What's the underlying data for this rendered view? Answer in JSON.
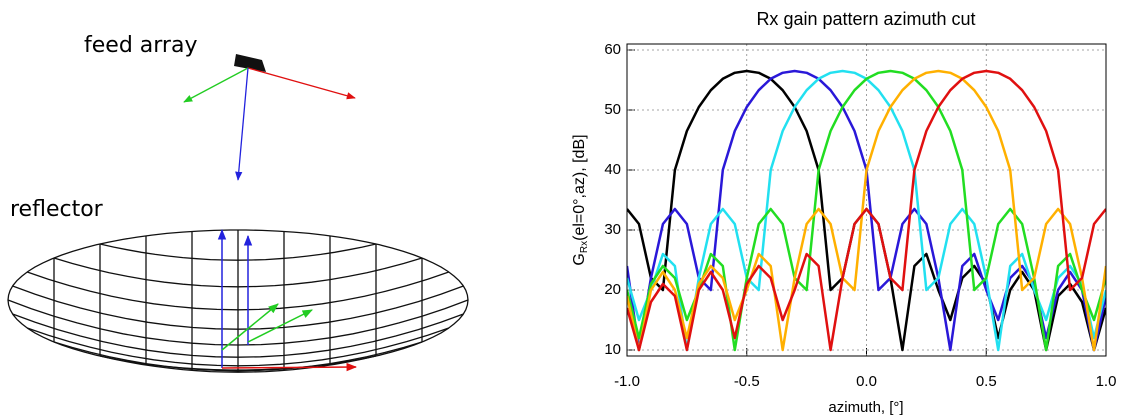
{
  "diagram": {
    "labels": [
      "feed array",
      "reflector"
    ]
  },
  "chart_data": {
    "type": "line",
    "title": "Rx gain pattern azimuth cut",
    "xlabel": "azimuth, [°]",
    "ylabel": {
      "main": "G",
      "sub": "Rx",
      "rest": "(el=0°,az), [dB]"
    },
    "x": [
      -1.0,
      -0.95,
      -0.9,
      -0.85,
      -0.8,
      -0.75,
      -0.7,
      -0.65,
      -0.6,
      -0.55,
      -0.5,
      -0.45,
      -0.4,
      -0.35,
      -0.3,
      -0.25,
      -0.2,
      -0.15,
      -0.1,
      -0.05,
      0.0,
      0.05,
      0.1,
      0.15,
      0.2,
      0.25,
      0.3,
      0.35,
      0.4,
      0.45,
      0.5,
      0.55,
      0.6,
      0.65,
      0.7,
      0.75,
      0.8,
      0.85,
      0.9,
      0.95,
      1.0
    ],
    "series": [
      {
        "color": "#000000",
        "values": [
          33.5,
          31,
          22,
          20,
          40,
          46.5,
          50.5,
          53.3,
          55.2,
          56.2,
          56.5,
          56.2,
          55.2,
          53.3,
          50.5,
          46.5,
          40,
          20,
          22,
          31,
          33.5,
          31,
          22,
          10,
          24,
          26,
          20,
          15,
          22,
          24,
          21,
          12,
          20,
          23,
          20,
          10,
          19,
          21,
          18,
          10,
          17
        ]
      },
      {
        "color": "#2a18d8",
        "values": [
          24,
          10,
          22,
          31,
          33.5,
          31,
          22,
          20,
          40,
          46.5,
          50.5,
          53.3,
          55.2,
          56.2,
          56.5,
          56.2,
          55.2,
          53.3,
          50.5,
          46.5,
          40,
          20,
          22,
          31,
          33.5,
          31,
          22,
          10,
          24,
          26,
          20,
          15,
          22,
          24,
          21,
          12,
          20,
          23,
          20,
          10,
          19
        ]
      },
      {
        "color": "#22e0f0",
        "values": [
          22,
          15,
          20,
          26,
          24,
          10,
          22,
          31,
          33.5,
          31,
          22,
          20,
          40,
          46.5,
          50.5,
          53.3,
          55.2,
          56.2,
          56.5,
          56.2,
          55.2,
          53.3,
          50.5,
          46.5,
          40,
          20,
          22,
          31,
          33.5,
          31,
          22,
          10,
          24,
          26,
          20,
          15,
          22,
          24,
          21,
          12,
          20
        ]
      },
      {
        "color": "#22dd22",
        "values": [
          20,
          12,
          21,
          24,
          22,
          15,
          20,
          26,
          24,
          10,
          22,
          31,
          33.5,
          31,
          22,
          20,
          40,
          46.5,
          50.5,
          53.3,
          55.2,
          56.2,
          56.5,
          56.2,
          55.2,
          53.3,
          50.5,
          46.5,
          40,
          20,
          22,
          31,
          33.5,
          31,
          22,
          10,
          24,
          26,
          20,
          15,
          22
        ]
      },
      {
        "color": "#ffb000",
        "values": [
          19,
          10,
          20,
          23,
          20,
          12,
          21,
          24,
          22,
          15,
          20,
          26,
          24,
          10,
          22,
          31,
          33.5,
          31,
          22,
          20,
          40,
          46.5,
          50.5,
          53.3,
          55.2,
          56.2,
          56.5,
          56.2,
          55.2,
          53.3,
          50.5,
          46.5,
          40,
          20,
          22,
          31,
          33.5,
          31,
          22,
          10,
          24
        ]
      },
      {
        "color": "#e01010",
        "values": [
          17,
          10,
          18,
          21,
          19,
          10,
          20,
          23,
          20,
          12,
          21,
          24,
          22,
          15,
          20,
          26,
          24,
          10,
          22,
          31,
          33.5,
          31,
          22,
          20,
          40,
          46.5,
          50.5,
          53.3,
          55.2,
          56.2,
          56.5,
          56.2,
          55.2,
          53.3,
          50.5,
          46.5,
          40,
          20,
          22,
          31,
          33.5
        ]
      }
    ],
    "xlim": [
      -1.0,
      1.0
    ],
    "ylim": [
      9,
      61
    ],
    "xticks": [
      {
        "value": -1.0,
        "label": "-1.0"
      },
      {
        "value": -0.5,
        "label": "-0.5"
      },
      {
        "value": 0.0,
        "label": "0.0"
      },
      {
        "value": 0.5,
        "label": "0.5"
      },
      {
        "value": 1.0,
        "label": "1.0"
      }
    ],
    "yticks": [
      10,
      20,
      30,
      40,
      50,
      60
    ],
    "grid": true
  }
}
